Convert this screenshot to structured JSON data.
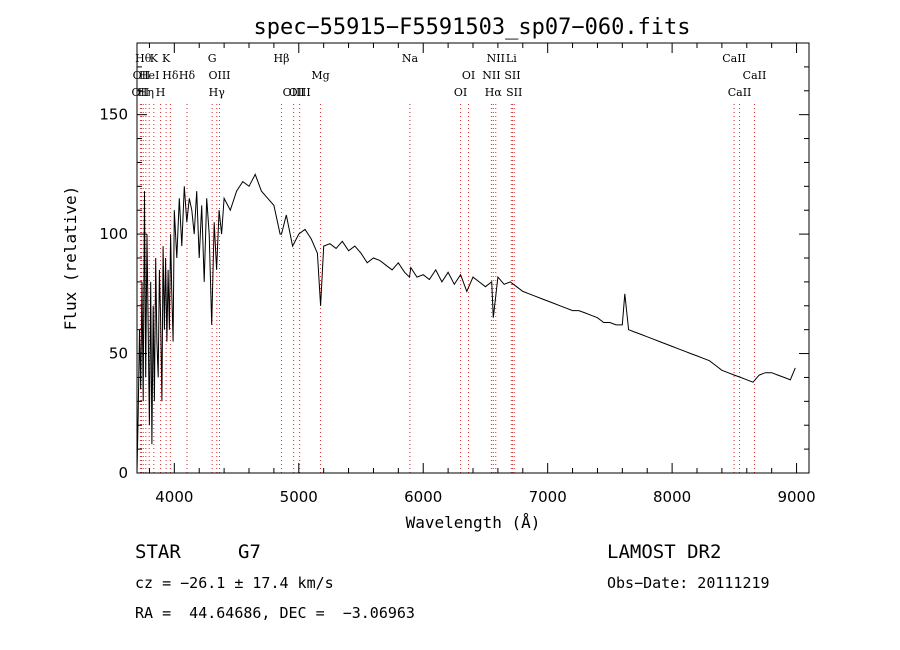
{
  "chart_data": {
    "type": "line",
    "title": "spec−55915−F5591503_sp07−060.fits",
    "xlabel": "Wavelength (Å)",
    "ylabel": "Flux (relative)",
    "xlim": [
      3700,
      9100
    ],
    "ylim": [
      0,
      180
    ],
    "x_ticks": [
      4000,
      5000,
      6000,
      7000,
      8000,
      9000
    ],
    "y_ticks": [
      0,
      50,
      100,
      150
    ],
    "grid": false,
    "colors": {
      "spectrum": "#000000",
      "lines": "#cc3333",
      "axes": "#000000"
    },
    "series": [
      {
        "x": [
          3700,
          3710,
          3720,
          3730,
          3740,
          3750,
          3760,
          3770,
          3780,
          3790,
          3800,
          3810,
          3820,
          3830,
          3840,
          3850,
          3860,
          3870,
          3880,
          3890,
          3900,
          3910,
          3920,
          3930,
          3940,
          3950,
          3960,
          3970,
          3980,
          3990,
          4000,
          4020,
          4040,
          4060,
          4080,
          4100,
          4120,
          4140,
          4160,
          4180,
          4200,
          4220,
          4240,
          4260,
          4280,
          4300,
          4320,
          4340,
          4360,
          4380,
          4400,
          4450,
          4500,
          4550,
          4600,
          4650,
          4700,
          4750,
          4800,
          4850,
          4861,
          4900,
          4950,
          5000,
          5050,
          5100,
          5150,
          5175,
          5200,
          5250,
          5300,
          5350,
          5400,
          5450,
          5500,
          5550,
          5600,
          5650,
          5700,
          5750,
          5800,
          5850,
          5890,
          5900,
          5950,
          6000,
          6050,
          6100,
          6150,
          6200,
          6250,
          6300,
          6350,
          6400,
          6450,
          6500,
          6550,
          6563,
          6600,
          6650,
          6700,
          6750,
          6800,
          6850,
          6900,
          6950,
          7000,
          7050,
          7100,
          7150,
          7200,
          7250,
          7300,
          7350,
          7400,
          7450,
          7500,
          7550,
          7600,
          7620,
          7650,
          7700,
          7750,
          7800,
          7850,
          7900,
          7950,
          8000,
          8050,
          8100,
          8150,
          8200,
          8250,
          8300,
          8350,
          8400,
          8450,
          8500,
          8550,
          8600,
          8650,
          8700,
          8750,
          8800,
          8850,
          8900,
          8950,
          8990
        ],
        "y": [
          0,
          25,
          60,
          35,
          80,
          30,
          118,
          40,
          100,
          60,
          20,
          80,
          12,
          70,
          30,
          90,
          55,
          40,
          85,
          65,
          30,
          95,
          60,
          90,
          55,
          85,
          60,
          100,
          75,
          55,
          110,
          90,
          115,
          95,
          120,
          105,
          115,
          110,
          100,
          118,
          90,
          112,
          80,
          115,
          100,
          62,
          105,
          85,
          110,
          100,
          115,
          110,
          118,
          122,
          120,
          125,
          118,
          115,
          112,
          100,
          100,
          108,
          95,
          100,
          102,
          98,
          92,
          70,
          95,
          96,
          94,
          97,
          93,
          95,
          92,
          88,
          90,
          89,
          87,
          85,
          88,
          84,
          82,
          86,
          82,
          83,
          81,
          85,
          80,
          84,
          79,
          83,
          76,
          82,
          80,
          78,
          80,
          65,
          82,
          79,
          80,
          78,
          76,
          75,
          74,
          73,
          72,
          71,
          70,
          69,
          68,
          68,
          67,
          66,
          65,
          63,
          63,
          62,
          62,
          75,
          60,
          59,
          58,
          57,
          56,
          55,
          54,
          53,
          52,
          51,
          50,
          49,
          48,
          47,
          45,
          43,
          42,
          41,
          40,
          39,
          38,
          41,
          42,
          42,
          41,
          40,
          39,
          44
        ]
      }
    ],
    "line_markers": [
      {
        "x": 3727,
        "row": 2,
        "text": "OII"
      },
      {
        "x": 3736,
        "row": 1,
        "text": "OII"
      },
      {
        "x": 3750,
        "row": 0,
        "text": "Hθ"
      },
      {
        "x": 3771,
        "row": 2,
        "text": "Hη"
      },
      {
        "x": 3798,
        "row": 1,
        "text": "HeI"
      },
      {
        "x": 3835,
        "row": 0,
        "text": "K"
      },
      {
        "x": 3889,
        "row": 2,
        "text": "H"
      },
      {
        "x": 3934,
        "row": 0,
        "text": "K"
      },
      {
        "x": 3968,
        "row": 1,
        "text": "Hδ"
      },
      {
        "x": 4102,
        "row": 1,
        "text": "Hδ"
      },
      {
        "x": 4304,
        "row": 0,
        "text": "G"
      },
      {
        "x": 4341,
        "row": 2,
        "text": "Hγ"
      },
      {
        "x": 4363,
        "row": 1,
        "text": "OIII"
      },
      {
        "x": 4861,
        "row": 0,
        "text": "Hβ"
      },
      {
        "x": 4959,
        "row": 2,
        "text": "OIII"
      },
      {
        "x": 5007,
        "row": 2,
        "text": "OIII"
      },
      {
        "x": 5175,
        "row": 1,
        "text": "Mg"
      },
      {
        "x": 5893,
        "row": 0,
        "text": "Na"
      },
      {
        "x": 6300,
        "row": 2,
        "text": "OI"
      },
      {
        "x": 6364,
        "row": 1,
        "text": "OI"
      },
      {
        "x": 6548,
        "row": 1,
        "text": "NII"
      },
      {
        "x": 6563,
        "row": 2,
        "text": "Hα"
      },
      {
        "x": 6583,
        "row": 0,
        "text": "NII"
      },
      {
        "x": 6708,
        "row": 0,
        "text": "Li"
      },
      {
        "x": 6717,
        "row": 1,
        "text": "SII"
      },
      {
        "x": 6731,
        "row": 2,
        "text": "SII"
      },
      {
        "x": 8498,
        "row": 0,
        "text": "CaII"
      },
      {
        "x": 8542,
        "row": 2,
        "text": "CaII"
      },
      {
        "x": 8662,
        "row": 1,
        "text": "CaII"
      }
    ]
  },
  "info": {
    "object_class": "STAR",
    "subclass": "G7",
    "redshift": "cz = −26.1 ± 17.4 km/s",
    "position": "RA =  44.64686, DEC =  −3.06963",
    "survey": "LAMOST DR2",
    "obs_date": "Obs−Date: 20111219"
  }
}
